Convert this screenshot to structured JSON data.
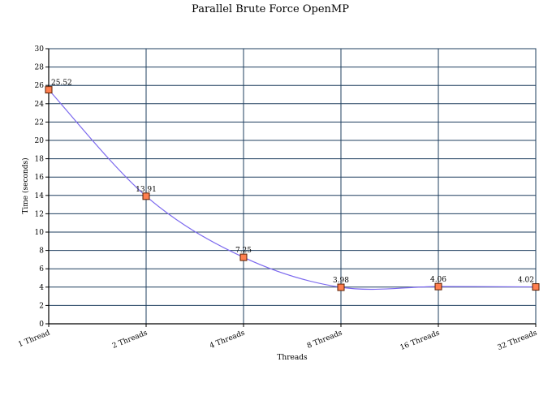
{
  "chart_data": {
    "type": "line",
    "title": "Parallel Brute Force OpenMP",
    "xlabel": "Threads",
    "ylabel": "Time (seconds)",
    "categories": [
      "1 Thread",
      "2 Threads",
      "4 Threads",
      "8 Threads",
      "16 Threads",
      "32 Threads"
    ],
    "series": [
      {
        "values": [
          25.52,
          13.91,
          7.25,
          3.98,
          4.06,
          4.02
        ],
        "data_labels": [
          "25.52",
          "13.91",
          "7.25",
          "3.98",
          "4.06",
          "4.02"
        ]
      }
    ],
    "ylim": [
      0,
      30
    ],
    "yticks": [
      "0",
      "2",
      "4",
      "6",
      "8",
      "10",
      "12",
      "14",
      "16",
      "18",
      "20",
      "22",
      "24",
      "26",
      "28",
      "30"
    ],
    "grid": true,
    "line_color": "#7b68ee",
    "marker_fill": "#ff7f50",
    "grid_color": "#1f3f5f"
  }
}
